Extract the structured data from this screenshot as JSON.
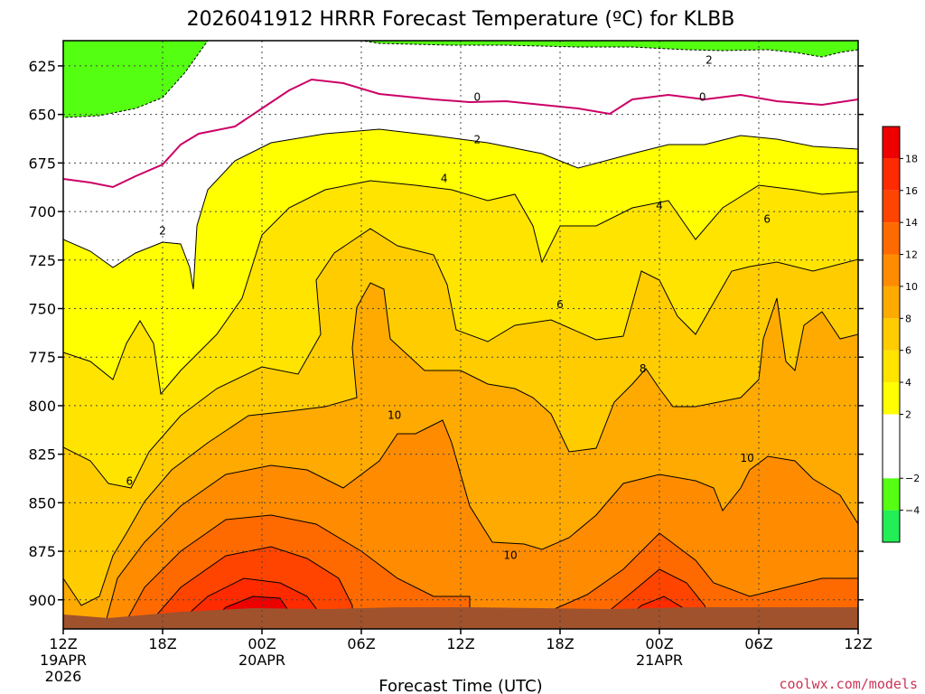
{
  "chart_data": {
    "type": "contour",
    "title": "2026041912 HRRR Forecast Temperature (ºC) for KLBB",
    "xlabel": "Forecast Time (UTC)",
    "y_ticks": [
      "625",
      "650",
      "675",
      "700",
      "725",
      "750",
      "775",
      "800",
      "825",
      "850",
      "875",
      "900"
    ],
    "y_values": [
      625,
      650,
      675,
      700,
      725,
      750,
      775,
      800,
      825,
      850,
      875,
      900
    ],
    "ylim": [
      915,
      612
    ],
    "x_ticks": [
      {
        "hours": 0,
        "label": "12Z",
        "sub": [
          "19APR",
          "2026"
        ]
      },
      {
        "hours": 6,
        "label": "18Z",
        "sub": []
      },
      {
        "hours": 12,
        "label": "00Z",
        "sub": [
          "20APR"
        ]
      },
      {
        "hours": 18,
        "label": "06Z",
        "sub": []
      },
      {
        "hours": 24,
        "label": "12Z",
        "sub": []
      },
      {
        "hours": 30,
        "label": "18Z",
        "sub": []
      },
      {
        "hours": 36,
        "label": "00Z",
        "sub": [
          "21APR"
        ]
      },
      {
        "hours": 42,
        "label": "06Z",
        "sub": []
      },
      {
        "hours": 48,
        "label": "12Z",
        "sub": []
      }
    ],
    "xlim": [
      0,
      48
    ],
    "colorbar": {
      "labels": [
        "18",
        "16",
        "14",
        "12",
        "10",
        "8",
        "6",
        "4",
        "2",
        "−2",
        "−4"
      ],
      "label_values": [
        18,
        16,
        14,
        12,
        10,
        8,
        6,
        4,
        2,
        -2,
        -4
      ],
      "range": [
        -6,
        20
      ],
      "colors": [
        {
          "from": -6,
          "to": -4,
          "color": "#22ee55"
        },
        {
          "from": -4,
          "to": -2,
          "color": "#55ff11"
        },
        {
          "from": -2,
          "to": 2,
          "color": "#ffffff"
        },
        {
          "from": 2,
          "to": 4,
          "color": "#ffff00"
        },
        {
          "from": 4,
          "to": 6,
          "color": "#ffe400"
        },
        {
          "from": 6,
          "to": 8,
          "color": "#ffcc00"
        },
        {
          "from": 8,
          "to": 10,
          "color": "#ffaa00"
        },
        {
          "from": 10,
          "to": 12,
          "color": "#ff8c00"
        },
        {
          "from": 12,
          "to": 14,
          "color": "#ff6a00"
        },
        {
          "from": 14,
          "to": 16,
          "color": "#ff4400"
        },
        {
          "from": 16,
          "to": 18,
          "color": "#ff2a00"
        },
        {
          "from": 18,
          "to": 20,
          "color": "#ee0000"
        }
      ]
    },
    "contour_labels": [
      {
        "text": "2",
        "hours": 39.0,
        "p": 622
      },
      {
        "text": "0",
        "hours": 25.0,
        "p": 641
      },
      {
        "text": "0",
        "hours": 38.6,
        "p": 641
      },
      {
        "text": "2",
        "hours": 25.0,
        "p": 663
      },
      {
        "text": "4",
        "hours": 23.0,
        "p": 683
      },
      {
        "text": "4",
        "hours": 36.0,
        "p": 697
      },
      {
        "text": "2",
        "hours": 6.0,
        "p": 710
      },
      {
        "text": "6",
        "hours": 42.5,
        "p": 704
      },
      {
        "text": "6",
        "hours": 30.0,
        "p": 748
      },
      {
        "text": "8",
        "hours": 35.0,
        "p": 781
      },
      {
        "text": "10",
        "hours": 20.0,
        "p": 805
      },
      {
        "text": "10",
        "hours": 41.3,
        "p": 827
      },
      {
        "text": "6",
        "hours": 4.0,
        "p": 839
      },
      {
        "text": "10",
        "hours": 27.0,
        "p": 877
      }
    ],
    "surface_color": "#a0522d",
    "credit": "coolwx.com/models"
  }
}
